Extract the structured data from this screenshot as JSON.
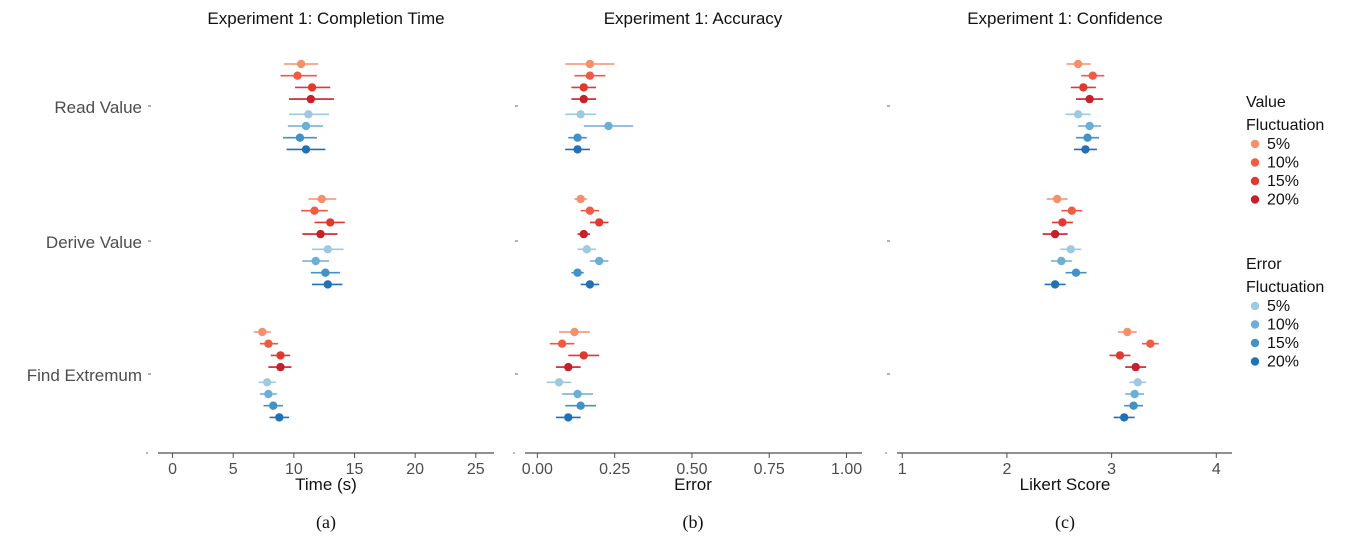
{
  "categories": [
    "Read Value",
    "Derive Value",
    "Find Extremum"
  ],
  "colors": {
    "value": [
      "#f4916b",
      "#ef5b43",
      "#e03a30",
      "#c8202a"
    ],
    "error": [
      "#9ecae1",
      "#6baed6",
      "#4292c6",
      "#2171b5"
    ]
  },
  "legend": {
    "groups": [
      {
        "title": [
          "Value",
          "Fluctuation"
        ],
        "items": [
          "5%",
          "10%",
          "15%",
          "20%"
        ]
      },
      {
        "title": [
          "Error",
          "Fluctuation"
        ],
        "items": [
          "5%",
          "10%",
          "15%",
          "20%"
        ]
      }
    ]
  },
  "chart_data": [
    {
      "type": "scatter",
      "title": "Experiment 1: Completion Time",
      "xlabel": "Time (s)",
      "caption": "(a)",
      "xlim": [
        -1.2,
        26.5
      ],
      "xticks": [
        0,
        5,
        10,
        15,
        20,
        25
      ],
      "tick_labels": [
        "0",
        "5",
        "10",
        "15",
        "20",
        "25"
      ],
      "series": [
        {
          "category": "Read Value",
          "group": "value",
          "level": "5%",
          "mean": 10.6,
          "lo": 9.2,
          "hi": 12.0
        },
        {
          "category": "Read Value",
          "group": "value",
          "level": "10%",
          "mean": 10.3,
          "lo": 8.9,
          "hi": 11.9
        },
        {
          "category": "Read Value",
          "group": "value",
          "level": "15%",
          "mean": 11.5,
          "lo": 10.1,
          "hi": 13.0
        },
        {
          "category": "Read Value",
          "group": "value",
          "level": "20%",
          "mean": 11.4,
          "lo": 9.6,
          "hi": 13.3
        },
        {
          "category": "Read Value",
          "group": "error",
          "level": "5%",
          "mean": 11.2,
          "lo": 9.6,
          "hi": 12.9
        },
        {
          "category": "Read Value",
          "group": "error",
          "level": "10%",
          "mean": 11.0,
          "lo": 9.5,
          "hi": 12.4
        },
        {
          "category": "Read Value",
          "group": "error",
          "level": "15%",
          "mean": 10.5,
          "lo": 9.1,
          "hi": 11.9
        },
        {
          "category": "Read Value",
          "group": "error",
          "level": "20%",
          "mean": 11.0,
          "lo": 9.4,
          "hi": 12.6
        },
        {
          "category": "Derive Value",
          "group": "value",
          "level": "5%",
          "mean": 12.3,
          "lo": 11.2,
          "hi": 13.5
        },
        {
          "category": "Derive Value",
          "group": "value",
          "level": "10%",
          "mean": 11.7,
          "lo": 10.6,
          "hi": 12.8
        },
        {
          "category": "Derive Value",
          "group": "value",
          "level": "15%",
          "mean": 13.0,
          "lo": 11.7,
          "hi": 14.2
        },
        {
          "category": "Derive Value",
          "group": "value",
          "level": "20%",
          "mean": 12.2,
          "lo": 10.7,
          "hi": 13.6
        },
        {
          "category": "Derive Value",
          "group": "error",
          "level": "5%",
          "mean": 12.8,
          "lo": 11.5,
          "hi": 14.1
        },
        {
          "category": "Derive Value",
          "group": "error",
          "level": "10%",
          "mean": 11.8,
          "lo": 10.7,
          "hi": 12.9
        },
        {
          "category": "Derive Value",
          "group": "error",
          "level": "15%",
          "mean": 12.6,
          "lo": 11.4,
          "hi": 13.8
        },
        {
          "category": "Derive Value",
          "group": "error",
          "level": "20%",
          "mean": 12.8,
          "lo": 11.5,
          "hi": 14.0
        },
        {
          "category": "Find Extremum",
          "group": "value",
          "level": "5%",
          "mean": 7.4,
          "lo": 6.7,
          "hi": 8.1
        },
        {
          "category": "Find Extremum",
          "group": "value",
          "level": "10%",
          "mean": 7.9,
          "lo": 7.2,
          "hi": 8.7
        },
        {
          "category": "Find Extremum",
          "group": "value",
          "level": "15%",
          "mean": 8.9,
          "lo": 8.1,
          "hi": 9.7
        },
        {
          "category": "Find Extremum",
          "group": "value",
          "level": "20%",
          "mean": 8.9,
          "lo": 7.9,
          "hi": 9.8
        },
        {
          "category": "Find Extremum",
          "group": "error",
          "level": "5%",
          "mean": 7.8,
          "lo": 7.1,
          "hi": 8.5
        },
        {
          "category": "Find Extremum",
          "group": "error",
          "level": "10%",
          "mean": 7.9,
          "lo": 7.2,
          "hi": 8.6
        },
        {
          "category": "Find Extremum",
          "group": "error",
          "level": "15%",
          "mean": 8.3,
          "lo": 7.5,
          "hi": 9.1
        },
        {
          "category": "Find Extremum",
          "group": "error",
          "level": "20%",
          "mean": 8.8,
          "lo": 8.0,
          "hi": 9.6
        }
      ]
    },
    {
      "type": "scatter",
      "title": "Experiment 1:  Accuracy",
      "xlabel": "Error",
      "caption": "(b)",
      "xlim": [
        -0.04,
        1.05
      ],
      "xticks": [
        0,
        0.25,
        0.5,
        0.75,
        1
      ],
      "tick_labels": [
        "0.00",
        "0.25",
        "0.50",
        "0.75",
        "1.00"
      ],
      "series": [
        {
          "category": "Read Value",
          "group": "value",
          "level": "5%",
          "mean": 0.17,
          "lo": 0.09,
          "hi": 0.25
        },
        {
          "category": "Read Value",
          "group": "value",
          "level": "10%",
          "mean": 0.17,
          "lo": 0.12,
          "hi": 0.22
        },
        {
          "category": "Read Value",
          "group": "value",
          "level": "15%",
          "mean": 0.15,
          "lo": 0.11,
          "hi": 0.19
        },
        {
          "category": "Read Value",
          "group": "value",
          "level": "20%",
          "mean": 0.15,
          "lo": 0.11,
          "hi": 0.19
        },
        {
          "category": "Read Value",
          "group": "error",
          "level": "5%",
          "mean": 0.14,
          "lo": 0.09,
          "hi": 0.19
        },
        {
          "category": "Read Value",
          "group": "error",
          "level": "10%",
          "mean": 0.23,
          "lo": 0.15,
          "hi": 0.31
        },
        {
          "category": "Read Value",
          "group": "error",
          "level": "15%",
          "mean": 0.13,
          "lo": 0.1,
          "hi": 0.16
        },
        {
          "category": "Read Value",
          "group": "error",
          "level": "20%",
          "mean": 0.13,
          "lo": 0.09,
          "hi": 0.17
        },
        {
          "category": "Derive Value",
          "group": "value",
          "level": "5%",
          "mean": 0.14,
          "lo": 0.12,
          "hi": 0.16
        },
        {
          "category": "Derive Value",
          "group": "value",
          "level": "10%",
          "mean": 0.17,
          "lo": 0.14,
          "hi": 0.2
        },
        {
          "category": "Derive Value",
          "group": "value",
          "level": "15%",
          "mean": 0.2,
          "lo": 0.17,
          "hi": 0.23
        },
        {
          "category": "Derive Value",
          "group": "value",
          "level": "20%",
          "mean": 0.15,
          "lo": 0.13,
          "hi": 0.17
        },
        {
          "category": "Derive Value",
          "group": "error",
          "level": "5%",
          "mean": 0.16,
          "lo": 0.13,
          "hi": 0.19
        },
        {
          "category": "Derive Value",
          "group": "error",
          "level": "10%",
          "mean": 0.2,
          "lo": 0.17,
          "hi": 0.23
        },
        {
          "category": "Derive Value",
          "group": "error",
          "level": "15%",
          "mean": 0.13,
          "lo": 0.11,
          "hi": 0.15
        },
        {
          "category": "Derive Value",
          "group": "error",
          "level": "20%",
          "mean": 0.17,
          "lo": 0.14,
          "hi": 0.2
        },
        {
          "category": "Find Extremum",
          "group": "value",
          "level": "5%",
          "mean": 0.12,
          "lo": 0.07,
          "hi": 0.17
        },
        {
          "category": "Find Extremum",
          "group": "value",
          "level": "10%",
          "mean": 0.08,
          "lo": 0.04,
          "hi": 0.12
        },
        {
          "category": "Find Extremum",
          "group": "value",
          "level": "15%",
          "mean": 0.15,
          "lo": 0.1,
          "hi": 0.2
        },
        {
          "category": "Find Extremum",
          "group": "value",
          "level": "20%",
          "mean": 0.1,
          "lo": 0.06,
          "hi": 0.14
        },
        {
          "category": "Find Extremum",
          "group": "error",
          "level": "5%",
          "mean": 0.07,
          "lo": 0.03,
          "hi": 0.11
        },
        {
          "category": "Find Extremum",
          "group": "error",
          "level": "10%",
          "mean": 0.13,
          "lo": 0.08,
          "hi": 0.18
        },
        {
          "category": "Find Extremum",
          "group": "error",
          "level": "15%",
          "mean": 0.14,
          "lo": 0.09,
          "hi": 0.19
        },
        {
          "category": "Find Extremum",
          "group": "error",
          "level": "20%",
          "mean": 0.1,
          "lo": 0.06,
          "hi": 0.14
        }
      ]
    },
    {
      "type": "scatter",
      "title": "Experiment 1:  Confidence",
      "xlabel": "Likert Score",
      "caption": "(c)",
      "xlim": [
        0.95,
        4.15
      ],
      "xticks": [
        1,
        2,
        3,
        4
      ],
      "tick_labels": [
        "1",
        "2",
        "3",
        "4"
      ],
      "series": [
        {
          "category": "Read Value",
          "group": "value",
          "level": "5%",
          "mean": 2.68,
          "lo": 2.57,
          "hi": 2.8
        },
        {
          "category": "Read Value",
          "group": "value",
          "level": "10%",
          "mean": 2.82,
          "lo": 2.71,
          "hi": 2.93
        },
        {
          "category": "Read Value",
          "group": "value",
          "level": "15%",
          "mean": 2.73,
          "lo": 2.61,
          "hi": 2.85
        },
        {
          "category": "Read Value",
          "group": "value",
          "level": "20%",
          "mean": 2.79,
          "lo": 2.66,
          "hi": 2.92
        },
        {
          "category": "Read Value",
          "group": "error",
          "level": "5%",
          "mean": 2.68,
          "lo": 2.56,
          "hi": 2.8
        },
        {
          "category": "Read Value",
          "group": "error",
          "level": "10%",
          "mean": 2.79,
          "lo": 2.68,
          "hi": 2.9
        },
        {
          "category": "Read Value",
          "group": "error",
          "level": "15%",
          "mean": 2.77,
          "lo": 2.66,
          "hi": 2.88
        },
        {
          "category": "Read Value",
          "group": "error",
          "level": "20%",
          "mean": 2.75,
          "lo": 2.64,
          "hi": 2.86
        },
        {
          "category": "Derive Value",
          "group": "value",
          "level": "5%",
          "mean": 2.48,
          "lo": 2.38,
          "hi": 2.58
        },
        {
          "category": "Derive Value",
          "group": "value",
          "level": "10%",
          "mean": 2.62,
          "lo": 2.52,
          "hi": 2.72
        },
        {
          "category": "Derive Value",
          "group": "value",
          "level": "15%",
          "mean": 2.53,
          "lo": 2.43,
          "hi": 2.63
        },
        {
          "category": "Derive Value",
          "group": "value",
          "level": "20%",
          "mean": 2.46,
          "lo": 2.34,
          "hi": 2.58
        },
        {
          "category": "Derive Value",
          "group": "error",
          "level": "5%",
          "mean": 2.61,
          "lo": 2.51,
          "hi": 2.71
        },
        {
          "category": "Derive Value",
          "group": "error",
          "level": "10%",
          "mean": 2.52,
          "lo": 2.42,
          "hi": 2.62
        },
        {
          "category": "Derive Value",
          "group": "error",
          "level": "15%",
          "mean": 2.66,
          "lo": 2.56,
          "hi": 2.76
        },
        {
          "category": "Derive Value",
          "group": "error",
          "level": "20%",
          "mean": 2.46,
          "lo": 2.36,
          "hi": 2.56
        },
        {
          "category": "Find Extremum",
          "group": "value",
          "level": "5%",
          "mean": 3.15,
          "lo": 3.06,
          "hi": 3.24
        },
        {
          "category": "Find Extremum",
          "group": "value",
          "level": "10%",
          "mean": 3.37,
          "lo": 3.29,
          "hi": 3.45
        },
        {
          "category": "Find Extremum",
          "group": "value",
          "level": "15%",
          "mean": 3.08,
          "lo": 2.98,
          "hi": 3.18
        },
        {
          "category": "Find Extremum",
          "group": "value",
          "level": "20%",
          "mean": 3.23,
          "lo": 3.13,
          "hi": 3.33
        },
        {
          "category": "Find Extremum",
          "group": "error",
          "level": "5%",
          "mean": 3.25,
          "lo": 3.17,
          "hi": 3.33
        },
        {
          "category": "Find Extremum",
          "group": "error",
          "level": "10%",
          "mean": 3.22,
          "lo": 3.13,
          "hi": 3.31
        },
        {
          "category": "Find Extremum",
          "group": "error",
          "level": "15%",
          "mean": 3.21,
          "lo": 3.12,
          "hi": 3.3
        },
        {
          "category": "Find Extremum",
          "group": "error",
          "level": "20%",
          "mean": 3.12,
          "lo": 3.02,
          "hi": 3.22
        }
      ]
    }
  ]
}
